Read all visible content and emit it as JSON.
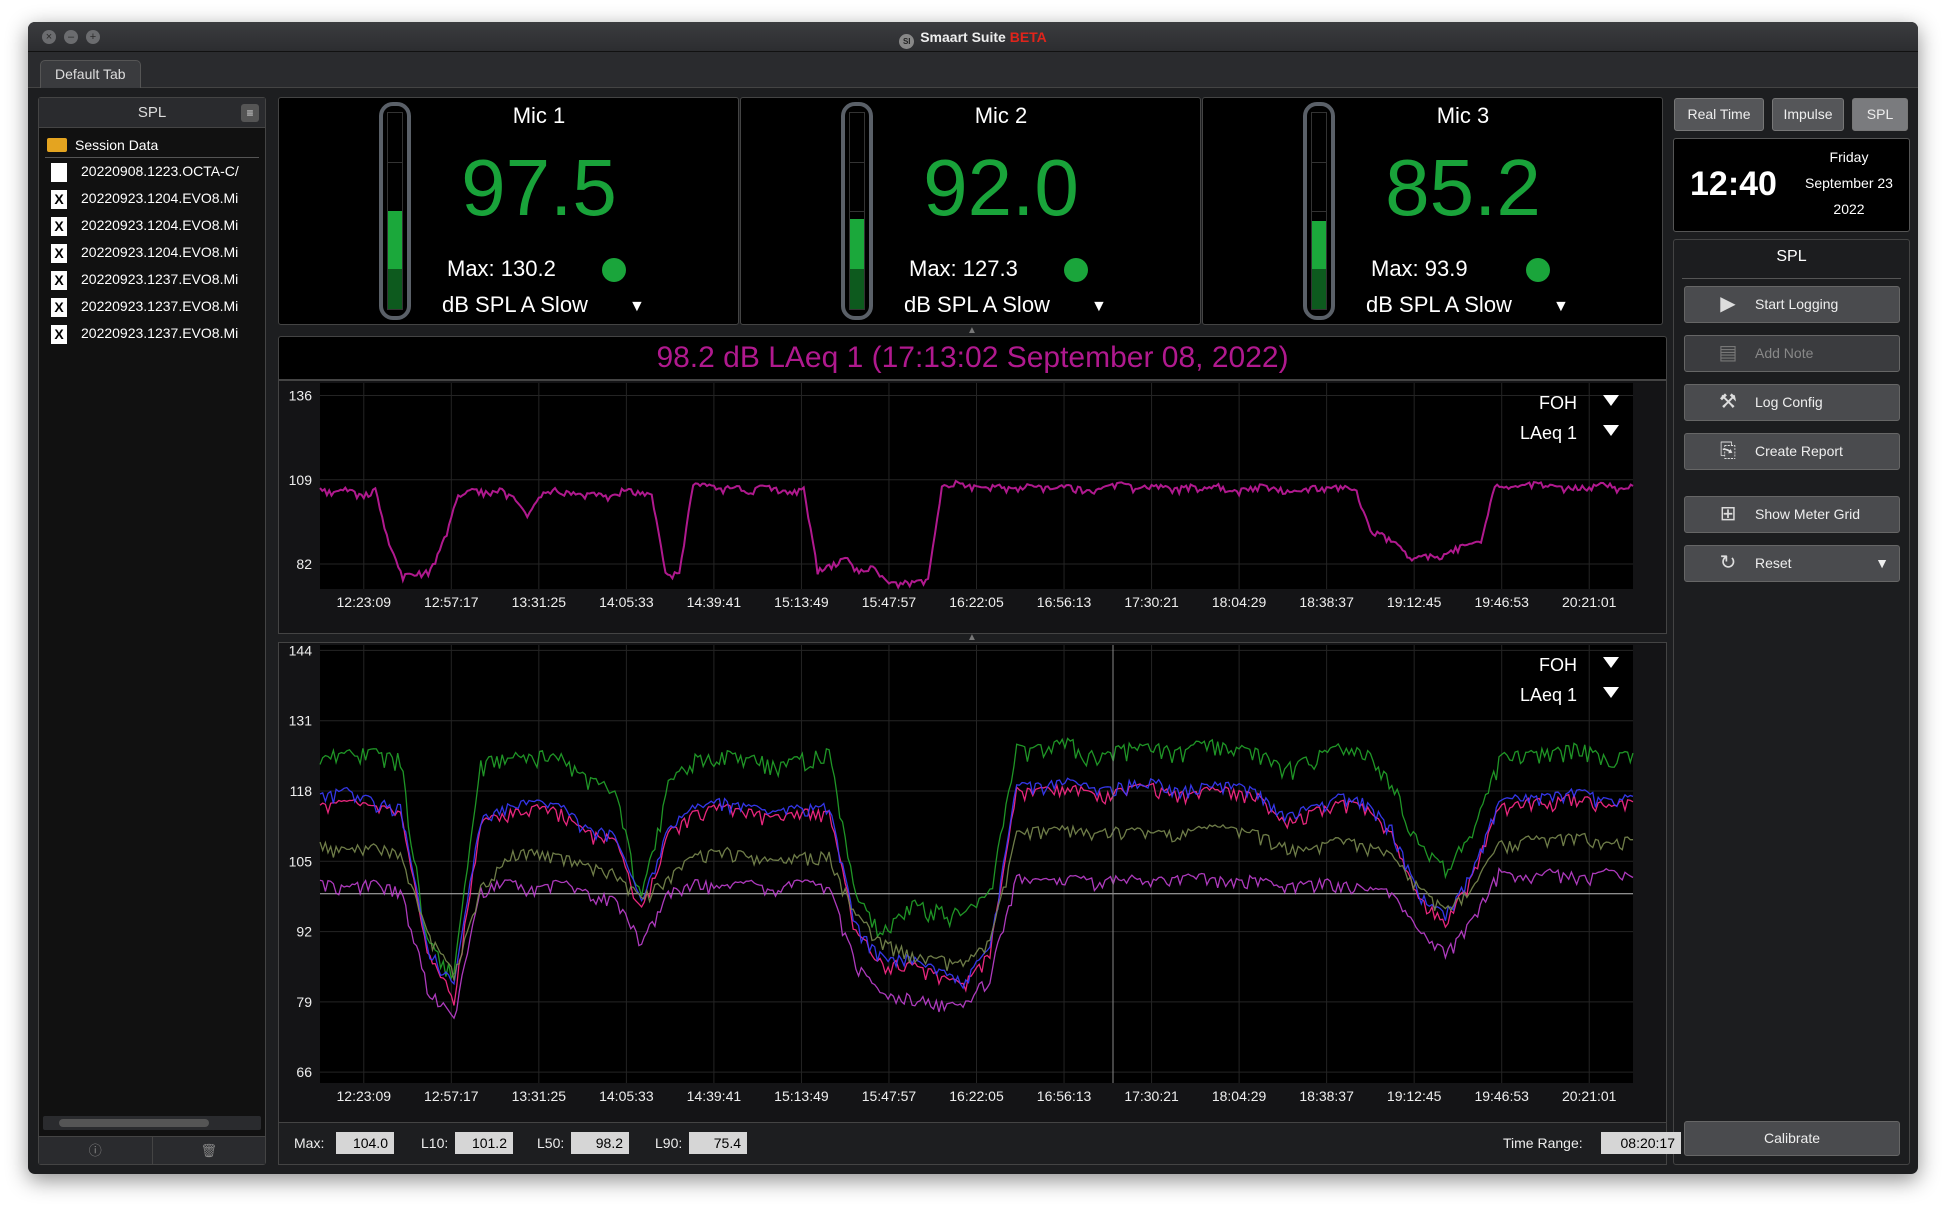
{
  "app": {
    "title": "Smaart Suite",
    "beta": "BETA",
    "logo_text": "SI"
  },
  "tabs": [
    {
      "label": "Default Tab"
    }
  ],
  "left_panel": {
    "title": "SPL",
    "folder_label": "Session Data",
    "files": [
      {
        "name": "20220908.1223.OCTA-C/",
        "icon": "document-icon"
      },
      {
        "name": "20220923.1204.EVO8.Mi",
        "icon": "x-document-icon"
      },
      {
        "name": "20220923.1204.EVO8.Mi",
        "icon": "x-document-icon"
      },
      {
        "name": "20220923.1204.EVO8.Mi",
        "icon": "x-document-icon"
      },
      {
        "name": "20220923.1237.EVO8.Mi",
        "icon": "x-document-icon"
      },
      {
        "name": "20220923.1237.EVO8.Mi",
        "icon": "x-document-icon"
      },
      {
        "name": "20220923.1237.EVO8.Mi",
        "icon": "x-document-icon"
      }
    ]
  },
  "meters": [
    {
      "name": "Mic 1",
      "value": "97.5",
      "max": "Max: 130.2",
      "unit": "dB SPL A Slow",
      "level": 0.5
    },
    {
      "name": "Mic 2",
      "value": "92.0",
      "max": "Max: 127.3",
      "unit": "dB SPL A Slow",
      "level": 0.46
    },
    {
      "name": "Mic 3",
      "value": "85.2",
      "max": "Max: 93.9",
      "unit": "dB SPL A Slow",
      "level": 0.45
    }
  ],
  "modes": [
    {
      "label": "Real Time",
      "active": false
    },
    {
      "label": "Impulse",
      "active": false
    },
    {
      "label": "SPL",
      "active": true
    }
  ],
  "clock": {
    "time": "12:40",
    "day": "Friday",
    "date": "September 23",
    "year": "2022"
  },
  "controls": {
    "title": "SPL",
    "buttons": [
      {
        "label": "Start Logging",
        "icon": "play-icon",
        "enabled": true
      },
      {
        "label": "Add Note",
        "icon": "note-icon",
        "enabled": false
      },
      {
        "label": "Log Config",
        "icon": "tools-icon",
        "enabled": true
      },
      {
        "label": "Create Report",
        "icon": "pdf-icon",
        "enabled": true
      },
      {
        "label": "Show Meter Grid",
        "icon": "grid-icon",
        "enabled": true
      },
      {
        "label": "Reset",
        "icon": "reset-icon",
        "enabled": true
      }
    ],
    "calibrate": "Calibrate"
  },
  "chart_header": "98.2 dB LAeq 1 (17:13:02 September 08, 2022)",
  "colors": {
    "laeq_trace": "#b0198e",
    "meter_green": "#19a33a",
    "bands": [
      "#22a52a",
      "#ff2a8a",
      "#3a3cff",
      "#c040d0",
      "#e23a3a",
      "#7a8a50"
    ]
  },
  "chart_data": [
    {
      "type": "line",
      "title": "",
      "selectors": [
        "FOH",
        "LAeq 1"
      ],
      "x_ticks": [
        "12:23:09",
        "12:57:17",
        "13:31:25",
        "14:05:33",
        "14:39:41",
        "15:13:49",
        "15:47:57",
        "16:22:05",
        "16:56:13",
        "17:30:21",
        "18:04:29",
        "18:38:37",
        "19:12:45",
        "19:46:53",
        "20:21:01"
      ],
      "y_ticks": [
        136,
        109,
        82
      ],
      "ylim": [
        74,
        140
      ],
      "series": [
        {
          "name": "LAeq 1",
          "color": "#b0198e",
          "values": [
            106,
            105,
            106,
            104,
            106,
            88,
            78,
            79,
            80,
            90,
            104,
            106,
            105,
            106,
            103,
            97,
            104,
            106,
            105,
            104,
            105,
            103,
            106,
            105,
            104,
            79,
            79,
            108,
            107,
            106,
            107,
            105,
            107,
            106,
            105,
            106,
            80,
            82,
            84,
            80,
            81,
            76,
            76,
            76,
            77,
            107,
            108,
            107,
            106,
            107,
            106,
            107,
            107,
            106,
            107,
            106,
            105,
            107,
            108,
            106,
            107,
            107,
            106,
            107,
            106,
            107,
            105,
            106,
            107,
            106,
            106,
            105,
            107,
            106,
            107,
            105,
            93,
            91,
            88,
            83,
            85,
            84,
            87,
            88,
            89,
            107,
            106,
            107,
            108,
            107,
            106,
            107,
            107,
            108,
            106,
            107
          ]
        }
      ]
    },
    {
      "type": "line",
      "title": "",
      "selectors": [
        "FOH",
        "LAeq 1"
      ],
      "x_ticks": [
        "12:23:09",
        "12:57:17",
        "13:31:25",
        "14:05:33",
        "14:39:41",
        "15:13:49",
        "15:47:57",
        "16:22:05",
        "16:56:13",
        "17:30:21",
        "18:04:29",
        "18:38:37",
        "19:12:45",
        "19:46:53",
        "20:21:01"
      ],
      "y_ticks": [
        144,
        131,
        118,
        105,
        92,
        79,
        66
      ],
      "ylim": [
        64,
        145
      ],
      "reference_line": 99,
      "series": [
        {
          "name": "",
          "color": "#22a52a",
          "values": [
            124,
            125,
            125,
            124,
            90,
            84,
            123,
            124,
            125,
            124,
            120,
            118,
            98,
            119,
            124,
            125,
            124,
            123,
            124,
            125,
            98,
            92,
            97,
            96,
            95,
            99,
            126,
            126,
            127,
            124,
            126,
            126,
            125,
            127,
            126,
            125,
            122,
            124,
            126,
            125,
            120,
            108,
            104,
            110,
            124,
            125,
            125,
            126,
            124,
            125
          ]
        },
        {
          "name": "",
          "color": "#ff2a8a",
          "values": [
            115,
            116,
            115,
            114,
            88,
            80,
            112,
            114,
            115,
            114,
            110,
            109,
            96,
            110,
            114,
            115,
            114,
            113,
            114,
            114,
            92,
            86,
            86,
            84,
            82,
            88,
            118,
            118,
            119,
            117,
            118,
            119,
            117,
            118,
            118,
            117,
            112,
            114,
            116,
            115,
            110,
            98,
            94,
            102,
            115,
            116,
            116,
            117,
            115,
            116
          ]
        },
        {
          "name": "",
          "color": "#3a3cff",
          "values": [
            117,
            118,
            116,
            115,
            89,
            82,
            113,
            115,
            116,
            115,
            111,
            110,
            97,
            111,
            115,
            116,
            115,
            114,
            115,
            115,
            93,
            87,
            87,
            85,
            83,
            89,
            119,
            119,
            120,
            118,
            119,
            120,
            118,
            119,
            119,
            118,
            113,
            115,
            117,
            116,
            111,
            99,
            95,
            103,
            116,
            117,
            117,
            118,
            116,
            117
          ]
        },
        {
          "name": "",
          "color": "#c040d0",
          "values": [
            101,
            100,
            101,
            100,
            82,
            76,
            100,
            101,
            100,
            101,
            99,
            98,
            90,
            99,
            101,
            100,
            101,
            100,
            101,
            100,
            86,
            80,
            80,
            79,
            78,
            84,
            102,
            101,
            102,
            101,
            102,
            101,
            102,
            102,
            101,
            102,
            100,
            101,
            101,
            100,
            99,
            92,
            88,
            94,
            103,
            102,
            103,
            102,
            103,
            102
          ]
        },
        {
          "name": "",
          "color": "#7a8a50",
          "values": [
            108,
            107,
            108,
            106,
            92,
            84,
            100,
            106,
            107,
            106,
            104,
            103,
            98,
            102,
            106,
            107,
            106,
            105,
            106,
            106,
            95,
            90,
            88,
            87,
            86,
            90,
            110,
            111,
            111,
            110,
            111,
            110,
            110,
            111,
            111,
            110,
            108,
            107,
            109,
            108,
            106,
            100,
            96,
            100,
            108,
            109,
            109,
            110,
            108,
            109
          ]
        }
      ]
    }
  ],
  "stats": {
    "max_label": "Max:",
    "max": "104.0",
    "l10_label": "L10:",
    "l10": "101.2",
    "l50_label": "L50:",
    "l50": "98.2",
    "l90_label": "L90:",
    "l90": "75.4",
    "range_label": "Time Range:",
    "range": "08:20:17"
  }
}
